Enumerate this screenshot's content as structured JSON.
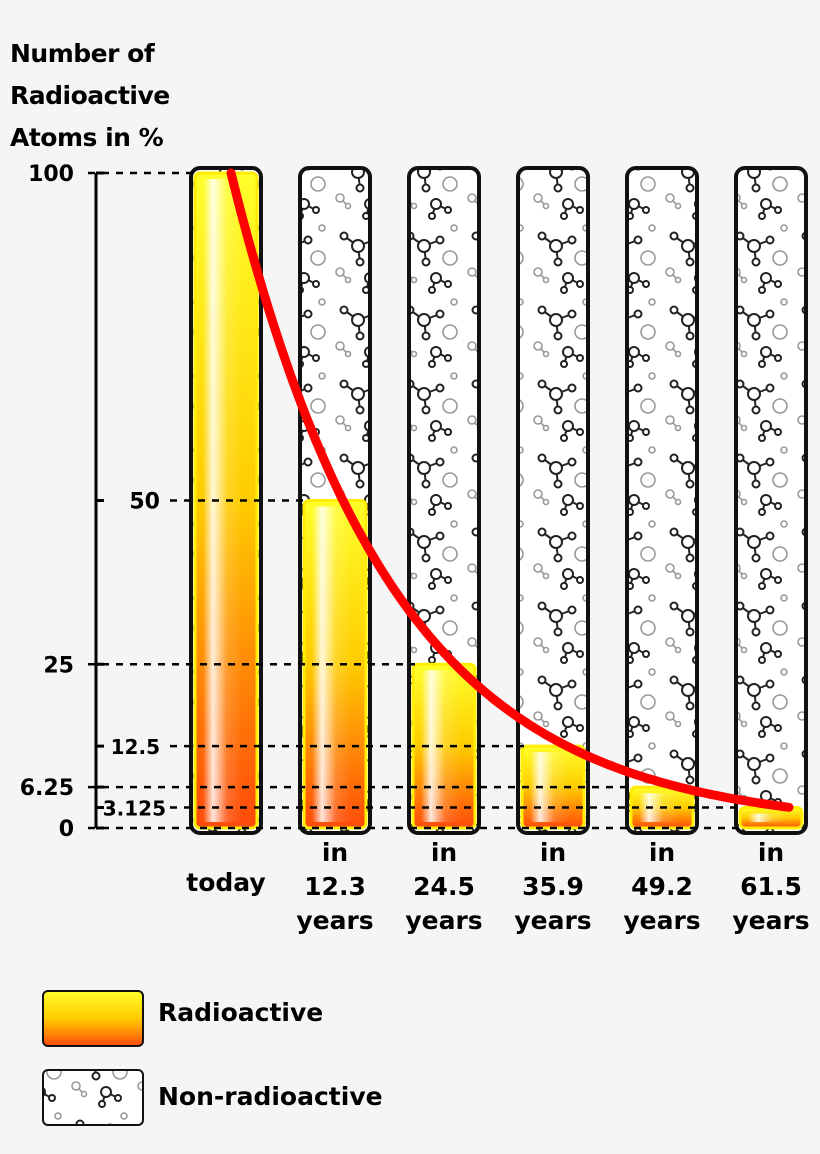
{
  "chart_data": {
    "type": "bar",
    "ylabel_lines": [
      "Number of",
      "Radioactive",
      "Atoms in %"
    ],
    "xlabel": "",
    "ylim": [
      0,
      100
    ],
    "y_ticks": [
      "100",
      "50",
      "25",
      "12.5",
      "6.25",
      "3.125",
      "0"
    ],
    "y_tick_values": [
      100,
      50,
      25,
      12.5,
      6.25,
      3.125,
      0
    ],
    "categories": [
      [
        "today"
      ],
      [
        "in",
        "12.3",
        "years"
      ],
      [
        "in",
        "24.5",
        "years"
      ],
      [
        "in",
        "35.9",
        "years"
      ],
      [
        "in",
        "49.2",
        "years"
      ],
      [
        "in",
        "61.5",
        "years"
      ]
    ],
    "series": [
      {
        "name": "Radioactive",
        "values": [
          100,
          50,
          25,
          12.5,
          6.25,
          3.125
        ]
      }
    ],
    "curve": {
      "type": "exponential-decay",
      "color": "#ff0000"
    },
    "colors": {
      "radio_top": "#ffff00",
      "radio_bottom": "#ff4400",
      "curve": "#ff0000"
    }
  },
  "legend": [
    {
      "label": "Radioactive",
      "swatch": "gradient"
    },
    {
      "label": "Non-radioactive",
      "swatch": "molecules"
    }
  ]
}
